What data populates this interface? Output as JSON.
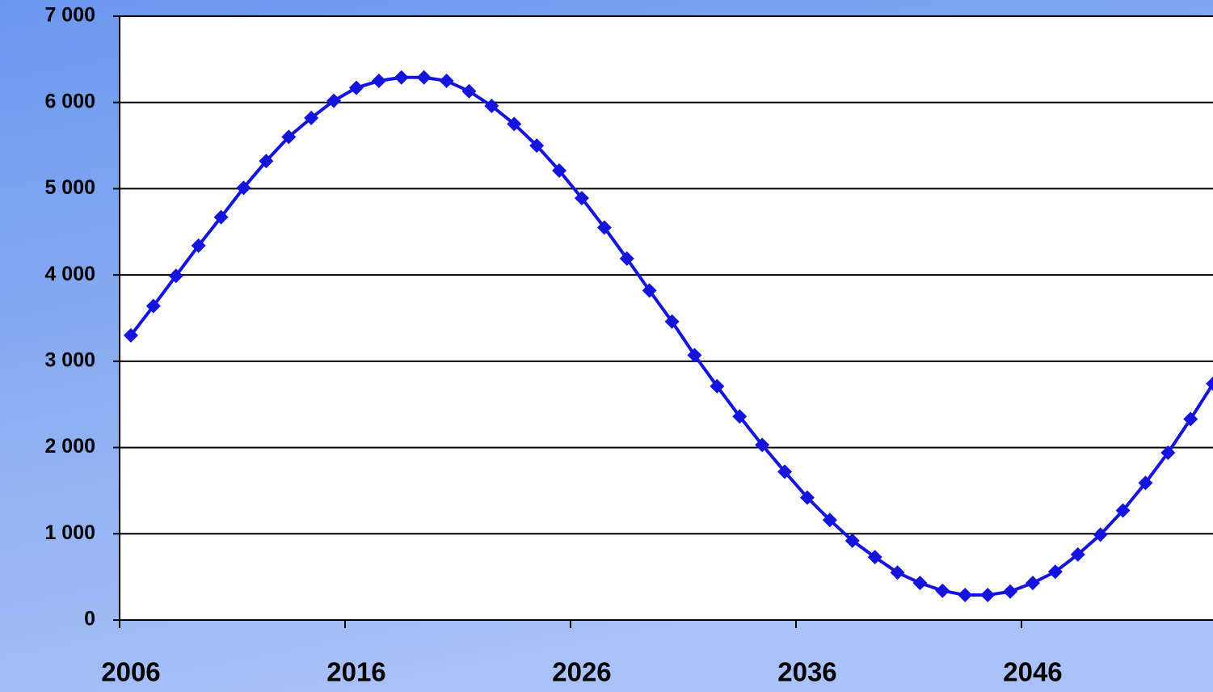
{
  "chart_data": {
    "type": "line",
    "categories": [
      "2006",
      null,
      null,
      null,
      null,
      null,
      null,
      null,
      null,
      null,
      "2016",
      null,
      null,
      null,
      null,
      null,
      null,
      null,
      null,
      null,
      "2026",
      null,
      null,
      null,
      null,
      null,
      null,
      null,
      null,
      null,
      "2036",
      null,
      null,
      null,
      null,
      null,
      null,
      null,
      null,
      null,
      "2046",
      null,
      null,
      null,
      null,
      null,
      null,
      null,
      null
    ],
    "series": [
      {
        "color": "#1414dc",
        "values": [
          3300,
          3640,
          3990,
          4340,
          4670,
          5010,
          5320,
          5600,
          5820,
          6020,
          6170,
          6250,
          6290,
          6290,
          6250,
          6130,
          5960,
          5750,
          5500,
          5210,
          4890,
          4550,
          4190,
          3820,
          3460,
          3070,
          2710,
          2360,
          2030,
          1720,
          1420,
          1160,
          920,
          730,
          550,
          430,
          340,
          290,
          290,
          330,
          430,
          560,
          760,
          990,
          1270,
          1590,
          1940,
          2330,
          2740
        ]
      }
    ],
    "ylim": [
      0,
      7000
    ],
    "yticks": [
      {
        "value": 0,
        "label": "0"
      },
      {
        "value": 1000,
        "label": "1 000"
      },
      {
        "value": 2000,
        "label": "2 000"
      },
      {
        "value": 3000,
        "label": "3 000"
      },
      {
        "value": 4000,
        "label": "4 000"
      },
      {
        "value": 5000,
        "label": "5 000"
      },
      {
        "value": 6000,
        "label": "6 000"
      },
      {
        "value": 7000,
        "label": "7 000"
      }
    ],
    "grid": true
  }
}
